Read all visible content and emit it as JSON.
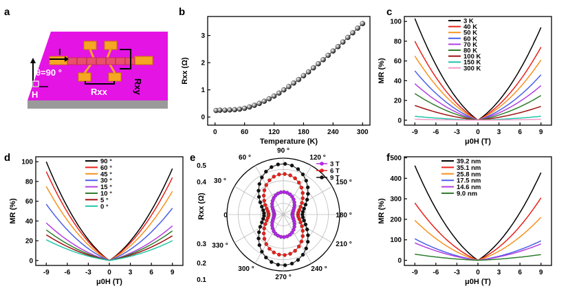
{
  "panel_letters": [
    "a",
    "b",
    "c",
    "d",
    "e",
    "f"
  ],
  "device": {
    "current_label": "I",
    "angle_label": "θ=90 °",
    "field_label": "H",
    "rxy_label": "Rxy",
    "rxx_label": "Rxx",
    "colors": {
      "substrate_top": "#e414e4",
      "substrate_side": "#9a9a9a",
      "pads": "#f5a623",
      "channel": "#e8506e"
    }
  },
  "chart_data": [
    {
      "panel": "b",
      "type": "line",
      "xlabel": "Temperature (K)",
      "ylabel": "Rxx (Ω)",
      "xlim": [
        -15,
        315
      ],
      "ylim": [
        -0.3,
        3.7
      ],
      "xticks": [
        "0",
        "60",
        "120",
        "180",
        "240",
        "300"
      ],
      "yticks": [
        "0",
        "1",
        "2",
        "3"
      ],
      "x": [
        2,
        10,
        20,
        30,
        40,
        50,
        60,
        70,
        80,
        90,
        100,
        110,
        120,
        130,
        140,
        150,
        160,
        170,
        180,
        190,
        200,
        210,
        220,
        230,
        240,
        250,
        260,
        270,
        280,
        290,
        300
      ],
      "values": [
        0.24,
        0.25,
        0.25,
        0.26,
        0.27,
        0.29,
        0.32,
        0.37,
        0.43,
        0.5,
        0.58,
        0.67,
        0.77,
        0.88,
        1.0,
        1.12,
        1.25,
        1.38,
        1.52,
        1.66,
        1.81,
        1.96,
        2.11,
        2.27,
        2.43,
        2.59,
        2.76,
        2.93,
        3.1,
        3.27,
        3.44
      ],
      "marker": "sphere"
    },
    {
      "panel": "c",
      "type": "line",
      "xlabel": "μ0H (T)",
      "ylabel": "MR (%)",
      "xlim": [
        -10.5,
        10.5
      ],
      "ylim": [
        -5,
        105
      ],
      "xticks": [
        "-9",
        "-6",
        "-3",
        "0",
        "3",
        "6",
        "9"
      ],
      "yticks": [
        "0",
        "20",
        "40",
        "60",
        "80",
        "100"
      ],
      "series": [
        {
          "name": "3 K",
          "color": "#000000",
          "left": 103,
          "right": 94
        },
        {
          "name": "40 K",
          "color": "#e8201a",
          "left": 80,
          "right": 74
        },
        {
          "name": "50 K",
          "color": "#f7911e",
          "left": 65,
          "right": 61
        },
        {
          "name": "60 K",
          "color": "#4a5ee8",
          "left": 50,
          "right": 46
        },
        {
          "name": "70 K",
          "color": "#b33ee0",
          "left": 37,
          "right": 35
        },
        {
          "name": "80 K",
          "color": "#2d7d2d",
          "left": 27,
          "right": 25
        },
        {
          "name": "100 K",
          "color": "#9e1010",
          "left": 15,
          "right": 14
        },
        {
          "name": "150 K",
          "color": "#1ec6a8",
          "left": 4,
          "right": 4
        },
        {
          "name": "300 K",
          "color": "#f59ac8",
          "left": 1,
          "right": 1
        }
      ]
    },
    {
      "panel": "d",
      "type": "line",
      "xlabel": "μ0H (T)",
      "ylabel": "MR (%)",
      "xlim": [
        -10.5,
        10.5
      ],
      "ylim": [
        -5,
        105
      ],
      "xticks": [
        "-9",
        "-6",
        "-3",
        "0",
        "3",
        "6",
        "9"
      ],
      "yticks": [
        "0",
        "20",
        "40",
        "60",
        "80",
        "100"
      ],
      "series": [
        {
          "name": "90 °",
          "color": "#000000",
          "left": 100,
          "right": 93
        },
        {
          "name": "60 °",
          "color": "#e8201a",
          "left": 90,
          "right": 84
        },
        {
          "name": "45 °",
          "color": "#f7911e",
          "left": 75,
          "right": 70
        },
        {
          "name": "30 °",
          "color": "#4a5ee8",
          "left": 57,
          "right": 53
        },
        {
          "name": "15 °",
          "color": "#b33ee0",
          "left": 38,
          "right": 35
        },
        {
          "name": "10 °",
          "color": "#2d7d2d",
          "left": 31,
          "right": 30
        },
        {
          "name": "5 °",
          "color": "#9e1010",
          "left": 26,
          "right": 25
        },
        {
          "name": "0 °",
          "color": "#1ec6a8",
          "left": 21,
          "right": 20
        }
      ]
    },
    {
      "panel": "e",
      "type": "scatter",
      "projection": "polar",
      "ylabel": "Rxx (Ω)",
      "rlim": [
        0,
        0.5
      ],
      "rticks": [
        "0.5",
        "0.4",
        "0.3",
        "0.2",
        "0.1"
      ],
      "angle_labels": [
        "0",
        "30 °",
        "60 °",
        "90 °",
        "120 °",
        "150 °",
        "180 °",
        "210 °",
        "240 °",
        "270 °",
        "300 °",
        "330 °"
      ],
      "series": [
        {
          "name": "3 T",
          "color": "#b526e8",
          "r0": 0.08,
          "r90": 0.2
        },
        {
          "name": "6 T",
          "color": "#e8201a",
          "r0": 0.13,
          "r90": 0.36
        },
        {
          "name": "9 T",
          "color": "#111111",
          "r0": 0.17,
          "r90": 0.45
        }
      ]
    },
    {
      "panel": "f",
      "type": "line",
      "xlabel": "μ0H (T)",
      "ylabel": "MR (%)",
      "xlim": [
        -10.5,
        10.5
      ],
      "ylim": [
        -25,
        505
      ],
      "xticks": [
        "-9",
        "-6",
        "-3",
        "0",
        "3",
        "6",
        "9"
      ],
      "yticks": [
        "0",
        "100",
        "200",
        "300",
        "400",
        "500"
      ],
      "series": [
        {
          "name": "39.2 nm",
          "color": "#000000",
          "left": 462,
          "right": 428
        },
        {
          "name": "35.1 nm",
          "color": "#e8201a",
          "left": 280,
          "right": 305
        },
        {
          "name": "25.8 nm",
          "color": "#f7911e",
          "left": 195,
          "right": 210
        },
        {
          "name": "17.5 nm",
          "color": "#4a5ee8",
          "left": 105,
          "right": 95
        },
        {
          "name": "14.6 nm",
          "color": "#b33ee0",
          "left": 85,
          "right": 80
        },
        {
          "name": "9.0 nm",
          "color": "#2d7d2d",
          "left": 30,
          "right": 28
        }
      ]
    }
  ]
}
